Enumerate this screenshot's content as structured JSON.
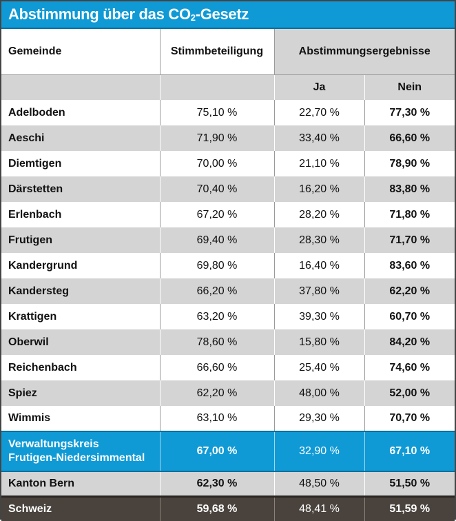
{
  "title_main": "Abstimmung über das CO",
  "title_sub": "2",
  "title_tail": "-Gesetz",
  "headers": {
    "gemeinde": "Gemeinde",
    "stimmbeteiligung": "Stimmbeteiligung",
    "ergebnisse": "Abstimmungsergebnisse",
    "ja": "Ja",
    "nein": "Nein"
  },
  "rows": [
    {
      "name": "Adelboden",
      "beteiligung": "75,10 %",
      "ja": "22,70 %",
      "nein": "77,30 %"
    },
    {
      "name": "Aeschi",
      "beteiligung": "71,90 %",
      "ja": "33,40 %",
      "nein": "66,60 %"
    },
    {
      "name": "Diemtigen",
      "beteiligung": "70,00 %",
      "ja": "21,10 %",
      "nein": "78,90 %"
    },
    {
      "name": "Därstetten",
      "beteiligung": "70,40 %",
      "ja": "16,20 %",
      "nein": "83,80 %"
    },
    {
      "name": "Erlenbach",
      "beteiligung": "67,20 %",
      "ja": "28,20 %",
      "nein": "71,80 %"
    },
    {
      "name": "Frutigen",
      "beteiligung": "69,40 %",
      "ja": "28,30 %",
      "nein": "71,70 %"
    },
    {
      "name": "Kandergrund",
      "beteiligung": "69,80 %",
      "ja": "16,40 %",
      "nein": "83,60 %"
    },
    {
      "name": "Kandersteg",
      "beteiligung": "66,20 %",
      "ja": "37,80 %",
      "nein": "62,20 %"
    },
    {
      "name": "Krattigen",
      "beteiligung": "63,20 %",
      "ja": "39,30 %",
      "nein": "60,70 %"
    },
    {
      "name": "Oberwil",
      "beteiligung": "78,60 %",
      "ja": "15,80 %",
      "nein": "84,20 %"
    },
    {
      "name": "Reichenbach",
      "beteiligung": "66,60 %",
      "ja": "25,40 %",
      "nein": "74,60 %"
    },
    {
      "name": "Spiez",
      "beteiligung": "62,20 %",
      "ja": "48,00 %",
      "nein": "52,00 %"
    },
    {
      "name": "Wimmis",
      "beteiligung": "63,10 %",
      "ja": "29,30 %",
      "nein": "70,70 %"
    }
  ],
  "kreis": {
    "name_line1": "Verwaltungskreis",
    "name_line2": "Frutigen-Niedersimmental",
    "beteiligung": "67,00 %",
    "ja": "32,90 %",
    "nein": "67,10 %"
  },
  "bern": {
    "name": "Kanton Bern",
    "beteiligung": "62,30 %",
    "ja": "48,50 %",
    "nein": "51,50 %"
  },
  "schweiz": {
    "name": "Schweiz",
    "beteiligung": "59,68 %",
    "ja": "48,41 %",
    "nein": "51,59 %"
  },
  "colors": {
    "accent_blue": "#0f9ad6",
    "row_grey": "#d4d4d4",
    "footer_dark": "#4a433d"
  }
}
